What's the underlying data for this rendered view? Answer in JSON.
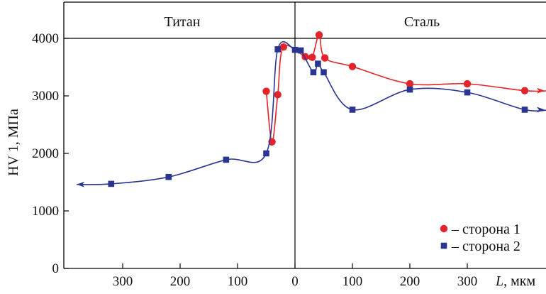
{
  "chart_data": {
    "type": "line",
    "regions": [
      {
        "name": "left",
        "label": "Титан"
      },
      {
        "name": "right",
        "label": "Сталь"
      }
    ],
    "ylabel": "HV 1, МПа",
    "xlabel_var": "L",
    "xlabel_unit": ", мкм",
    "x_axis_note": "distance from interface; left side = Titan, right side = Steel",
    "xlim": [
      -370,
      370
    ],
    "ylim": [
      0,
      4100
    ],
    "x_ticks": [
      {
        "value": -300,
        "label": "300"
      },
      {
        "value": -200,
        "label": "200"
      },
      {
        "value": -100,
        "label": "100"
      },
      {
        "value": 0,
        "label": "0"
      },
      {
        "value": 100,
        "label": "100"
      },
      {
        "value": 200,
        "label": "200"
      },
      {
        "value": 300,
        "label": "300"
      }
    ],
    "y_ticks": [
      {
        "value": 0,
        "label": "0"
      },
      {
        "value": 1000,
        "label": "1000"
      },
      {
        "value": 2000,
        "label": "2000"
      },
      {
        "value": 3000,
        "label": "3000"
      },
      {
        "value": 4000,
        "label": "4000"
      }
    ],
    "legend_position": "bottom-right",
    "series": [
      {
        "name": "– сторона 1",
        "color": "#e4232b",
        "marker": "circle",
        "points": [
          {
            "x": -50,
            "y": 3080
          },
          {
            "x": -40,
            "y": 2200
          },
          {
            "x": -30,
            "y": 3020
          },
          {
            "x": -20,
            "y": 3850
          },
          {
            "x": 18,
            "y": 3680
          },
          {
            "x": 30,
            "y": 3670
          },
          {
            "x": 42,
            "y": 4060
          },
          {
            "x": 52,
            "y": 3660
          },
          {
            "x": 100,
            "y": 3510
          },
          {
            "x": 200,
            "y": 3210
          },
          {
            "x": 300,
            "y": 3210
          },
          {
            "x": 400,
            "y": 3090
          }
        ],
        "arrow_end": {
          "x": 445,
          "y": 3090
        }
      },
      {
        "name": "– сторона 2",
        "color": "#2a3592",
        "marker": "square",
        "points": [
          {
            "x": -320,
            "y": 1470
          },
          {
            "x": -220,
            "y": 1590
          },
          {
            "x": -120,
            "y": 1890
          },
          {
            "x": -50,
            "y": 2000
          },
          {
            "x": -30,
            "y": 3810
          },
          {
            "x": 0,
            "y": 3800
          },
          {
            "x": 10,
            "y": 3790
          },
          {
            "x": 32,
            "y": 3410
          },
          {
            "x": 40,
            "y": 3560
          },
          {
            "x": 50,
            "y": 3410
          },
          {
            "x": 100,
            "y": 2760
          },
          {
            "x": 200,
            "y": 3110
          },
          {
            "x": 300,
            "y": 3060
          },
          {
            "x": 400,
            "y": 2760
          }
        ],
        "arrow_start": {
          "x": -380,
          "y": 1460
        },
        "arrow_end": {
          "x": 445,
          "y": 2760
        }
      }
    ]
  }
}
